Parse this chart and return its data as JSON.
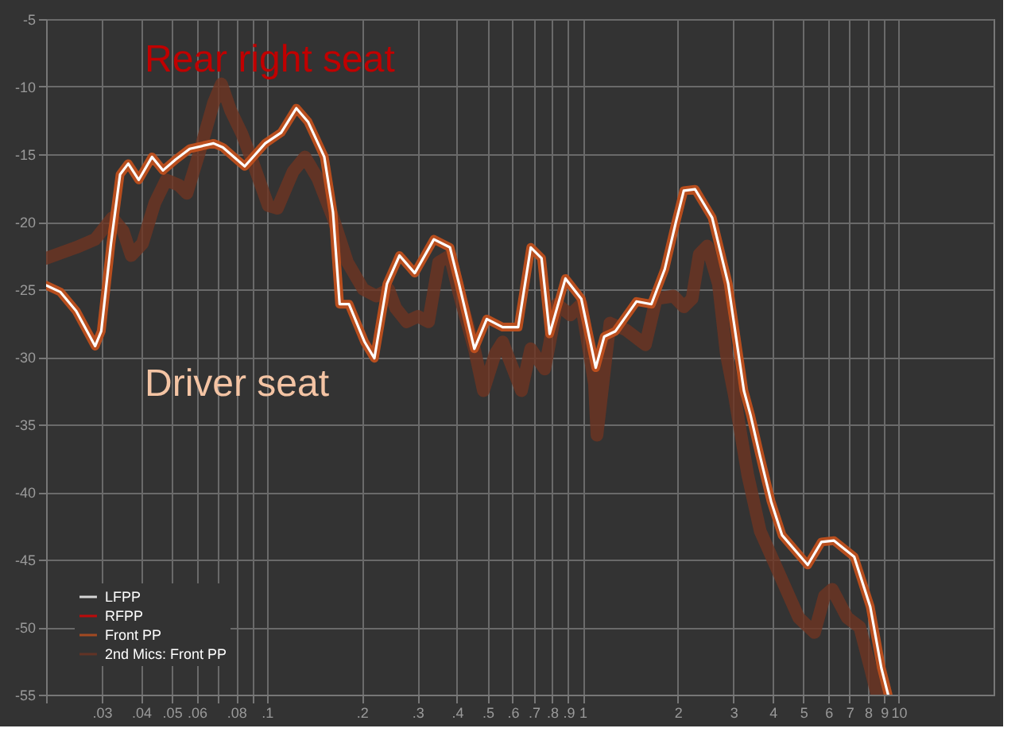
{
  "chart_data": {
    "type": "line",
    "annotations": [
      "Rear right seat",
      "Driver seat"
    ],
    "series": [
      {
        "name": "LFPP",
        "color": "#ffffff",
        "x": [
          0.02,
          0.0222,
          0.0249,
          0.0286,
          0.0299,
          0.0321,
          0.0343,
          0.0364,
          0.0393,
          0.0433,
          0.0469,
          0.0514,
          0.057,
          0.0678,
          0.0726,
          0.0851,
          0.0988,
          0.111,
          0.124,
          0.135,
          0.152,
          0.162,
          0.17,
          0.182,
          0.204,
          0.219,
          0.24,
          0.263,
          0.294,
          0.338,
          0.38,
          0.406,
          0.454,
          0.497,
          0.558,
          0.625,
          0.685,
          0.741,
          0.786,
          0.882,
          0.99,
          1.1,
          1.17,
          1.27,
          1.48,
          1.65,
          1.82,
          1.97,
          2.09,
          2.27,
          2.57,
          2.89,
          3.24,
          3.4,
          3.64,
          3.95,
          4.28,
          5.16,
          5.7,
          6.25,
          7.24,
          8.14,
          8.82,
          9.27
        ],
        "values": [
          -24.7,
          -25.2,
          -26.6,
          -29.2,
          -28.1,
          -21.6,
          -16.5,
          -15.7,
          -16.9,
          -15.2,
          -16.2,
          -15.4,
          -14.6,
          -14.2,
          -14.5,
          -15.9,
          -14.2,
          -13.4,
          -11.6,
          -12.6,
          -15.2,
          -19.3,
          -26.1,
          -26.1,
          -28.9,
          -30.1,
          -24.6,
          -22.5,
          -23.8,
          -21.3,
          -21.9,
          -24.6,
          -29.4,
          -27.2,
          -27.8,
          -27.8,
          -21.9,
          -22.7,
          -28.3,
          -24.2,
          -25.7,
          -30.8,
          -28.5,
          -28.1,
          -25.9,
          -26.1,
          -23.5,
          -20.1,
          -17.7,
          -17.6,
          -19.7,
          -24.6,
          -32.5,
          -34.3,
          -37.3,
          -40.7,
          -43.2,
          -45.4,
          -43.7,
          -43.6,
          -44.8,
          -48.5,
          -53.0,
          -55.0
        ]
      },
      {
        "name": "RFPP",
        "color": "#e00000"
      },
      {
        "name": "Front PP",
        "color": "#c0501e",
        "x": [
          0.02,
          0.0222,
          0.0249,
          0.0286,
          0.0299,
          0.0321,
          0.0343,
          0.0364,
          0.0393,
          0.0433,
          0.0469,
          0.0514,
          0.057,
          0.0678,
          0.0726,
          0.0851,
          0.0988,
          0.111,
          0.124,
          0.135,
          0.152,
          0.162,
          0.17,
          0.182,
          0.204,
          0.219,
          0.24,
          0.263,
          0.294,
          0.338,
          0.38,
          0.406,
          0.454,
          0.497,
          0.558,
          0.625,
          0.685,
          0.741,
          0.786,
          0.882,
          0.99,
          1.1,
          1.17,
          1.27,
          1.48,
          1.65,
          1.82,
          1.97,
          2.09,
          2.27,
          2.57,
          2.89,
          3.24,
          3.4,
          3.64,
          3.95,
          4.28,
          5.16,
          5.7,
          6.25,
          7.24,
          8.14,
          8.82,
          9.27
        ],
        "values": [
          -24.7,
          -25.2,
          -26.6,
          -29.2,
          -28.1,
          -21.6,
          -16.5,
          -15.7,
          -16.9,
          -15.2,
          -16.2,
          -15.4,
          -14.6,
          -14.2,
          -14.5,
          -15.9,
          -14.2,
          -13.4,
          -11.6,
          -12.6,
          -15.2,
          -19.3,
          -26.1,
          -26.1,
          -28.9,
          -30.1,
          -24.6,
          -22.5,
          -23.8,
          -21.3,
          -21.9,
          -24.6,
          -29.4,
          -27.2,
          -27.8,
          -27.8,
          -21.9,
          -22.7,
          -28.3,
          -24.2,
          -25.7,
          -30.8,
          -28.5,
          -28.1,
          -25.9,
          -26.1,
          -23.5,
          -20.1,
          -17.7,
          -17.6,
          -19.7,
          -24.6,
          -32.5,
          -34.3,
          -37.3,
          -40.7,
          -43.2,
          -45.4,
          -43.7,
          -43.6,
          -44.8,
          -48.5,
          -53.0,
          -55.0
        ]
      },
      {
        "name": "2nd Mics: Front PP",
        "color": "#6e3422",
        "x": [
          0.02,
          0.0249,
          0.0286,
          0.0324,
          0.0351,
          0.0372,
          0.0404,
          0.0442,
          0.048,
          0.0527,
          0.0558,
          0.0611,
          0.0678,
          0.0718,
          0.0769,
          0.0834,
          0.0909,
          0.101,
          0.108,
          0.121,
          0.132,
          0.145,
          0.162,
          0.18,
          0.202,
          0.222,
          0.243,
          0.256,
          0.277,
          0.301,
          0.325,
          0.35,
          0.38,
          0.406,
          0.454,
          0.485,
          0.528,
          0.558,
          0.577,
          0.64,
          0.685,
          0.758,
          0.83,
          0.914,
          0.99,
          1.09,
          1.11,
          1.22,
          1.37,
          1.58,
          1.71,
          1.94,
          2.09,
          2.22,
          2.34,
          2.48,
          2.69,
          2.85,
          3.02,
          3.33,
          3.65,
          4.09,
          4.83,
          5.42,
          5.83,
          6.17,
          6.88,
          7.54,
          8.14,
          8.55
        ],
        "values": [
          -22.7,
          -21.9,
          -21.3,
          -19.7,
          -20.7,
          -22.5,
          -21.6,
          -18.6,
          -16.9,
          -17.3,
          -17.9,
          -14.9,
          -11.2,
          -9.8,
          -11.8,
          -13.5,
          -15.8,
          -18.8,
          -19.0,
          -16.3,
          -15.2,
          -16.8,
          -19.7,
          -23.0,
          -25.0,
          -25.5,
          -25.0,
          -26.4,
          -27.4,
          -27.0,
          -27.4,
          -23.0,
          -22.5,
          -25.3,
          -29.4,
          -32.5,
          -29.8,
          -28.9,
          -29.8,
          -32.5,
          -29.4,
          -30.9,
          -26.1,
          -26.9,
          -26.1,
          -32.0,
          -35.8,
          -27.5,
          -28.0,
          -29.1,
          -25.7,
          -25.5,
          -26.3,
          -25.7,
          -22.4,
          -21.8,
          -24.6,
          -29.8,
          -32.8,
          -38.7,
          -42.9,
          -45.5,
          -49.3,
          -50.4,
          -47.7,
          -47.2,
          -49.3,
          -50.0,
          -53.0,
          -55.0
        ]
      }
    ],
    "log": "x",
    "xlim": [
      0.02,
      20
    ],
    "xticks": [
      {
        "value": 0.02,
        "label": null
      },
      {
        "value": 0.03,
        "label": ".03"
      },
      {
        "value": 0.04,
        "label": ".04"
      },
      {
        "value": 0.05,
        "label": ".05"
      },
      {
        "value": 0.06,
        "label": ".06"
      },
      {
        "value": 0.07,
        "label": null
      },
      {
        "value": 0.08,
        "label": ".08"
      },
      {
        "value": 0.09,
        "label": null
      },
      {
        "value": 0.1,
        "label": ".1"
      },
      {
        "value": 0.2,
        "label": ".2"
      },
      {
        "value": 0.3,
        "label": ".3"
      },
      {
        "value": 0.4,
        "label": ".4"
      },
      {
        "value": 0.5,
        "label": ".5"
      },
      {
        "value": 0.6,
        "label": ".6"
      },
      {
        "value": 0.7,
        "label": ".7"
      },
      {
        "value": 0.8,
        "label": ".8"
      },
      {
        "value": 0.9,
        "label": ".9"
      },
      1,
      2,
      3,
      4,
      5,
      6,
      7,
      8,
      9,
      10
    ],
    "ylim": [
      -55,
      -5
    ],
    "yticks": [
      -5,
      -10,
      -15,
      -20,
      -25,
      -30,
      -35,
      -40,
      -45,
      -50,
      -55
    ],
    "grid": true,
    "legend": "bottom left"
  }
}
